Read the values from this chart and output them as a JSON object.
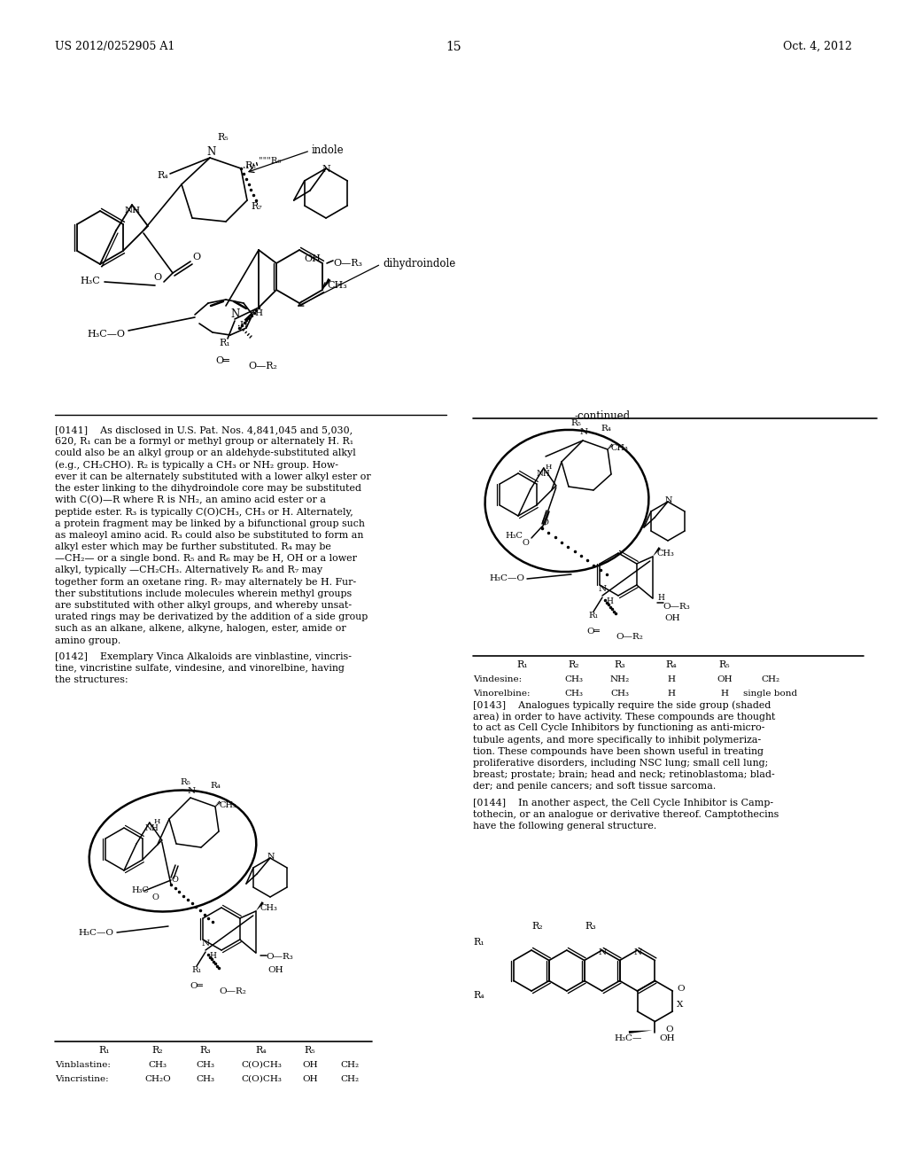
{
  "page_header_left": "US 2012/0252905 A1",
  "page_header_right": "Oct. 4, 2012",
  "page_number": "15",
  "background_color": "#ffffff",
  "para_0141_lines": [
    "[0141]    As disclosed in U.S. Pat. Nos. 4,841,045 and 5,030,",
    "620, R₁ can be a formyl or methyl group or alternately H. R₁",
    "could also be an alkyl group or an aldehyde-substituted alkyl",
    "(e.g., CH₂CHO). R₂ is typically a CH₃ or NH₂ group. How-",
    "ever it can be alternately substituted with a lower alkyl ester or",
    "the ester linking to the dihydroindole core may be substituted",
    "with C(O)—R where R is NH₂, an amino acid ester or a",
    "peptide ester. R₃ is typically C(O)CH₃, CH₃ or H. Alternately,",
    "a protein fragment may be linked by a bifunctional group such",
    "as maleoyl amino acid. R₃ could also be substituted to form an",
    "alkyl ester which may be further substituted. R₄ may be",
    "—CH₂— or a single bond. R₅ and R₆ may be H, OH or a lower",
    "alkyl, typically —CH₂CH₃. Alternatively R₆ and R₇ may",
    "together form an oxetane ring. R₇ may alternately be H. Fur-",
    "ther substitutions include molecules wherein methyl groups",
    "are substituted with other alkyl groups, and whereby unsat-",
    "urated rings may be derivatized by the addition of a side group",
    "such as an alkane, alkene, alkyne, halogen, ester, amide or",
    "amino group."
  ],
  "para_0142_lines": [
    "[0142]    Exemplary Vinca Alkaloids are vinblastine, vincris-",
    "tine, vincristine sulfate, vindesine, and vinorelbine, having",
    "the structures:"
  ],
  "para_0143_lines": [
    "[0143]    Analogues typically require the side group (shaded",
    "area) in order to have activity. These compounds are thought",
    "to act as Cell Cycle Inhibitors by functioning as anti-micro-",
    "tubule agents, and more specifically to inhibit polymeriza-",
    "tion. These compounds have been shown useful in treating",
    "proliferative disorders, including NSC lung; small cell lung;",
    "breast; prostate; brain; head and neck; retinoblastoma; blad-",
    "der; and penile cancers; and soft tissue sarcoma."
  ],
  "para_0144_lines": [
    "[0144]    In another aspect, the Cell Cycle Inhibitor is Camp-",
    "tothecin, or an analogue or derivative thereof. Camptothecins",
    "have the following general structure."
  ],
  "table1_header": [
    "R₁",
    "R₂",
    "R₃",
    "R₄",
    "R₅"
  ],
  "table1_rows": [
    [
      "Vinblastine:",
      "CH₃",
      "CH₃",
      "C(O)CH₃",
      "OH",
      "CH₂"
    ],
    [
      "Vincristine:",
      "CH₂O",
      "CH₃",
      "C(O)CH₃",
      "OH",
      "CH₂"
    ]
  ],
  "table2_header": [
    "R₁",
    "R₂",
    "R₃",
    "R₄",
    "R₅"
  ],
  "table2_rows": [
    [
      "Vindesine:",
      "CH₃",
      "NH₂",
      "H",
      "OH",
      "CH₂"
    ],
    [
      "Vinorelbine:",
      "CH₃",
      "CH₃",
      "H",
      "H",
      "single bond"
    ]
  ]
}
